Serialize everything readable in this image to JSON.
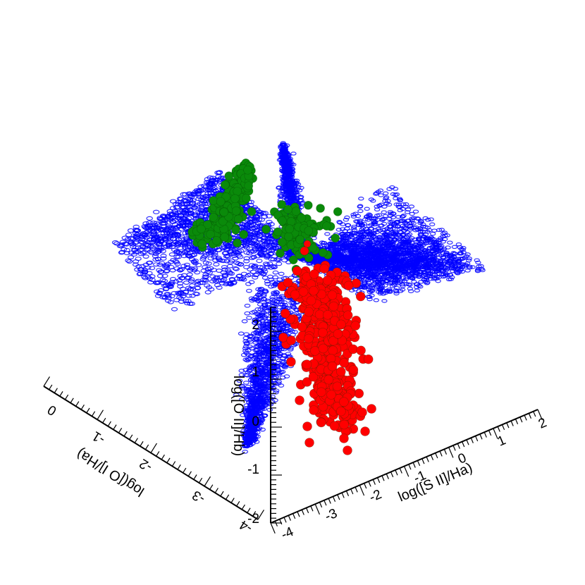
{
  "chart_data": {
    "type": "scatter",
    "projection": "3d",
    "grid": false,
    "legend": "none",
    "axes": {
      "x": {
        "label": "log([S II]/Ha)",
        "range": [
          -4,
          2
        ],
        "ticks": [
          "-4",
          "-3",
          "-2",
          "-1",
          "0",
          "1",
          "2"
        ]
      },
      "y": {
        "label": "log([O I]/Ha)",
        "range": [
          -4,
          0
        ],
        "ticks": [
          "-4",
          "-3",
          "-2",
          "-1",
          "0"
        ]
      },
      "z": {
        "label": "log([O II]/Hb)",
        "range": [
          -2,
          2.5
        ],
        "ticks": [
          "-2",
          "-1",
          "0",
          "1",
          "2"
        ]
      }
    },
    "series": [
      {
        "color": "#0000ff",
        "marker": "ring",
        "description_points": [
          [
            -0.5,
            -1.9,
            1.1
          ],
          [
            -0.3,
            -1.8,
            1.2
          ],
          [
            0.0,
            -1.7,
            1.3
          ],
          [
            0.5,
            -1.6,
            1.4
          ],
          [
            1.0,
            -1.5,
            1.5
          ],
          [
            1.5,
            -1.4,
            1.6
          ],
          [
            1.9,
            -1.3,
            1.7
          ],
          [
            -1.0,
            -2.0,
            1.0
          ],
          [
            -1.5,
            -2.1,
            0.9
          ],
          [
            -2.0,
            -2.2,
            0.6
          ],
          [
            -2.5,
            -2.4,
            0.3
          ],
          [
            -2.8,
            -2.6,
            0.0
          ],
          [
            -3.0,
            -2.8,
            -0.3
          ],
          [
            -3.2,
            -3.0,
            -0.7
          ],
          [
            -1.2,
            -0.2,
            2.4
          ],
          [
            -1.4,
            -0.6,
            2.1
          ],
          [
            -1.6,
            -1.0,
            1.8
          ],
          [
            -2.0,
            -1.2,
            1.5
          ],
          [
            -0.8,
            -0.8,
            2.2
          ],
          [
            -0.6,
            -1.2,
            1.9
          ]
        ]
      },
      {
        "color": "#0a8a0a",
        "marker": "sphere",
        "description_points": [
          [
            -0.6,
            -0.9,
            1.9
          ],
          [
            -0.7,
            -1.0,
            1.8
          ],
          [
            -0.8,
            -1.1,
            1.7
          ],
          [
            -0.9,
            -1.2,
            1.6
          ],
          [
            -0.5,
            -1.4,
            1.6
          ],
          [
            -0.4,
            -1.6,
            1.5
          ],
          [
            -1.0,
            -0.8,
            1.9
          ],
          [
            -0.3,
            -1.7,
            1.4
          ],
          [
            -1.1,
            -1.3,
            1.5
          ],
          [
            -0.2,
            -1.9,
            1.3
          ]
        ]
      },
      {
        "color": "#ff0000",
        "marker": "sphere",
        "description_points": [
          [
            -0.6,
            -2.2,
            0.9
          ],
          [
            -0.5,
            -2.3,
            0.7
          ],
          [
            -0.4,
            -2.4,
            0.5
          ],
          [
            -0.3,
            -2.5,
            0.3
          ],
          [
            -0.2,
            -2.6,
            0.1
          ],
          [
            -0.1,
            -2.7,
            -0.1
          ],
          [
            0.0,
            -2.8,
            -0.3
          ],
          [
            -0.7,
            -2.4,
            0.6
          ],
          [
            -0.8,
            -2.5,
            0.4
          ],
          [
            0.1,
            -2.6,
            0.0
          ],
          [
            0.2,
            -2.4,
            0.2
          ],
          [
            -0.4,
            -2.9,
            -0.5
          ],
          [
            -0.2,
            -3.0,
            -0.7
          ],
          [
            0.3,
            -2.7,
            -0.4
          ],
          [
            -0.9,
            -2.6,
            0.2
          ]
        ]
      }
    ]
  }
}
